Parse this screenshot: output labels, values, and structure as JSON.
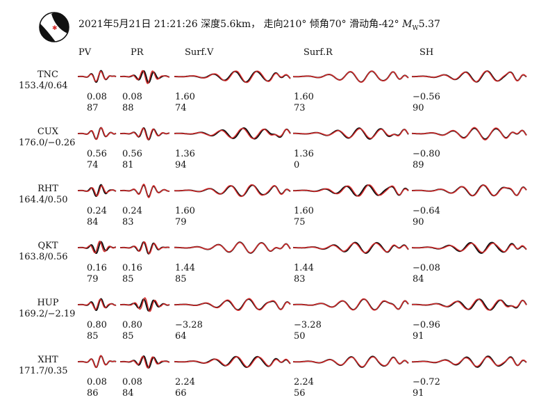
{
  "header": {
    "date": "2021年5月21日",
    "time": "21:21:26",
    "depth": "深度5.6km，",
    "strike": "走向210°",
    "dip": "倾角70°",
    "rake": "滑动角-42°",
    "mag_symbol": "M",
    "mag_sub": "W",
    "mag_value": "5.37"
  },
  "colors": {
    "observed": "#111111",
    "synthetic": "#d42a2a",
    "beachball_dark": "#111111",
    "epicenter_star": "#d42a2a"
  },
  "icons": {
    "beachball": "focal-mechanism-beachball-icon"
  },
  "chart_data": {
    "type": "line",
    "columns": [
      "PV",
      "PR",
      "Surf.V",
      "Surf.R",
      "SH"
    ],
    "legend": [],
    "stations": [
      {
        "name": "TNC",
        "az_dist": "153.4/0.64",
        "shifts": [
          "0.08",
          "0.08",
          "1.60",
          "1.60",
          "−0.56"
        ],
        "cc": [
          "87",
          "88",
          "74",
          "73",
          "90"
        ]
      },
      {
        "name": "CUX",
        "az_dist": "176.0/−0.26",
        "shifts": [
          "0.56",
          "0.56",
          "1.36",
          "1.36",
          "−0.80"
        ],
        "cc": [
          "74",
          "81",
          "94",
          "0",
          "89"
        ]
      },
      {
        "name": "RHT",
        "az_dist": "164.4/0.50",
        "shifts": [
          "0.24",
          "0.24",
          "1.60",
          "1.60",
          "−0.64"
        ],
        "cc": [
          "84",
          "83",
          "79",
          "75",
          "90"
        ]
      },
      {
        "name": "QKT",
        "az_dist": "163.8/0.56",
        "shifts": [
          "0.16",
          "0.16",
          "1.44",
          "1.44",
          "−0.08"
        ],
        "cc": [
          "79",
          "85",
          "85",
          "83",
          "84"
        ]
      },
      {
        "name": "HUP",
        "az_dist": "169.2/−2.19",
        "shifts": [
          "0.80",
          "0.80",
          "−3.28",
          "−3.28",
          "−0.96"
        ],
        "cc": [
          "85",
          "85",
          "64",
          "50",
          "91"
        ]
      },
      {
        "name": "XHT",
        "az_dist": "171.7/0.35",
        "shifts": [
          "0.08",
          "0.08",
          "2.24",
          "2.24",
          "−0.72"
        ],
        "cc": [
          "86",
          "84",
          "66",
          "56",
          "91"
        ]
      }
    ]
  }
}
